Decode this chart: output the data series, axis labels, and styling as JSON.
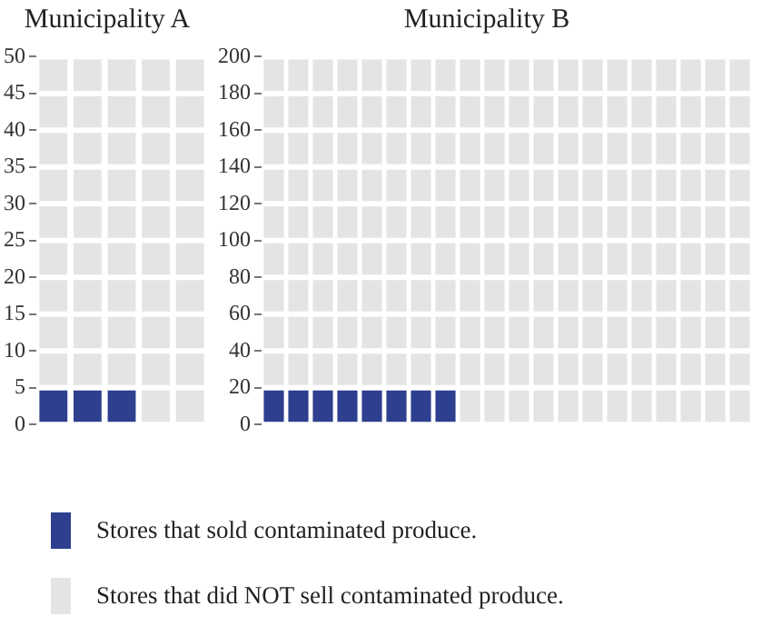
{
  "chart_data": [
    {
      "type": "bar",
      "title": "Municipality A",
      "stacked": true,
      "grid": "y",
      "legend": "bottom",
      "categories": [
        null,
        null,
        null,
        null,
        null
      ],
      "ylim": [
        0,
        50
      ],
      "yticks": [
        0,
        5,
        10,
        15,
        20,
        25,
        30,
        35,
        40,
        45,
        50
      ],
      "series": [
        {
          "name": "Stores that sold contaminated produce.",
          "color": "#2e3f8f",
          "values": [
            5,
            5,
            5,
            0,
            0
          ]
        },
        {
          "name": "Stores that did NOT sell contaminated produce.",
          "color": "#e4e4e4",
          "values": [
            45,
            45,
            45,
            50,
            50
          ]
        }
      ]
    },
    {
      "type": "bar",
      "title": "Municipality B",
      "stacked": true,
      "grid": "y",
      "categories": [
        null,
        null,
        null,
        null,
        null,
        null,
        null,
        null,
        null,
        null,
        null,
        null,
        null,
        null,
        null,
        null,
        null,
        null,
        null,
        null
      ],
      "ylim": [
        0,
        200
      ],
      "yticks": [
        0,
        20,
        40,
        60,
        80,
        100,
        120,
        140,
        160,
        180,
        200
      ],
      "series": [
        {
          "color": "#2e3f8f",
          "values": [
            20,
            20,
            20,
            20,
            20,
            20,
            20,
            20,
            0,
            0,
            0,
            0,
            0,
            0,
            0,
            0,
            0,
            0,
            0,
            0
          ]
        },
        {
          "color": "#e4e4e4",
          "values": [
            180,
            180,
            180,
            180,
            180,
            180,
            180,
            180,
            200,
            200,
            200,
            200,
            200,
            200,
            200,
            200,
            200,
            200,
            200,
            200
          ]
        }
      ]
    }
  ]
}
